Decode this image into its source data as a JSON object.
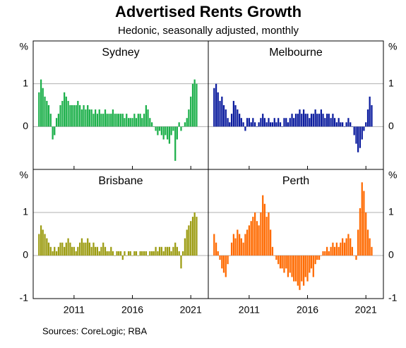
{
  "chart_data": {
    "type": "bar",
    "title": "Advertised Rents Growth",
    "subtitle": "Hedonic, seasonally adjusted, monthly",
    "y_unit": "%",
    "source": "Sources: CoreLogic; RBA",
    "xlim": [
      2007.5,
      2022.5
    ],
    "xticks": [
      2011,
      2016,
      2021
    ],
    "ylim": [
      -1,
      2
    ],
    "yticks": [
      -1,
      0,
      1
    ],
    "grid": true,
    "x": [
      2008,
      2008.17,
      2008.33,
      2008.5,
      2008.67,
      2008.83,
      2009,
      2009.17,
      2009.33,
      2009.5,
      2009.67,
      2009.83,
      2010,
      2010.17,
      2010.33,
      2010.5,
      2010.67,
      2010.83,
      2011,
      2011.17,
      2011.33,
      2011.5,
      2011.67,
      2011.83,
      2012,
      2012.17,
      2012.33,
      2012.5,
      2012.67,
      2012.83,
      2013,
      2013.17,
      2013.33,
      2013.5,
      2013.67,
      2013.83,
      2014,
      2014.17,
      2014.33,
      2014.5,
      2014.67,
      2014.83,
      2015,
      2015.17,
      2015.33,
      2015.5,
      2015.67,
      2015.83,
      2016,
      2016.17,
      2016.33,
      2016.5,
      2016.67,
      2016.83,
      2017,
      2017.17,
      2017.33,
      2017.5,
      2017.67,
      2017.83,
      2018,
      2018.17,
      2018.33,
      2018.5,
      2018.67,
      2018.83,
      2019,
      2019.17,
      2019.33,
      2019.5,
      2019.67,
      2019.83,
      2020,
      2020.17,
      2020.33,
      2020.5,
      2020.67,
      2020.83,
      2021,
      2021.17,
      2021.33,
      2021.5
    ],
    "series": [
      {
        "name": "Sydney",
        "color": "#1db04b",
        "values": [
          0.8,
          1.1,
          0.9,
          0.7,
          0.6,
          0.5,
          0.3,
          -0.3,
          -0.2,
          0.2,
          0.3,
          0.5,
          0.6,
          0.8,
          0.7,
          0.6,
          0.5,
          0.5,
          0.5,
          0.5,
          0.6,
          0.5,
          0.4,
          0.5,
          0.4,
          0.5,
          0.4,
          0.4,
          0.3,
          0.4,
          0.3,
          0.4,
          0.3,
          0.3,
          0.4,
          0.3,
          0.3,
          0.3,
          0.4,
          0.3,
          0.3,
          0.3,
          0.3,
          0.3,
          0.2,
          0.3,
          0.2,
          0.2,
          0.2,
          0.3,
          0.2,
          0.3,
          0.3,
          0.2,
          0.3,
          0.5,
          0.4,
          0.2,
          0.1,
          0.0,
          -0.1,
          -0.2,
          -0.1,
          -0.2,
          -0.3,
          -0.2,
          -0.3,
          -0.4,
          -0.2,
          -0.1,
          -0.8,
          -0.3,
          0.1,
          -0.1,
          0.0,
          0.1,
          0.2,
          0.4,
          0.7,
          1.0,
          1.1,
          1.0
        ]
      },
      {
        "name": "Melbourne",
        "color": "#0b1c9e",
        "values": [
          0.9,
          1.0,
          0.8,
          0.6,
          0.7,
          0.5,
          0.4,
          0.2,
          0.1,
          0.3,
          0.6,
          0.5,
          0.4,
          0.3,
          0.2,
          0.1,
          -0.1,
          0.2,
          0.2,
          0.1,
          0.2,
          0.1,
          0.0,
          0.1,
          0.2,
          0.3,
          0.2,
          0.1,
          0.2,
          0.1,
          0.1,
          0.2,
          0.1,
          0.2,
          0.1,
          0.0,
          0.2,
          0.2,
          0.1,
          0.2,
          0.3,
          0.2,
          0.3,
          0.3,
          0.4,
          0.3,
          0.4,
          0.3,
          0.3,
          0.2,
          0.3,
          0.3,
          0.4,
          0.3,
          0.3,
          0.4,
          0.3,
          0.2,
          0.3,
          0.3,
          0.2,
          0.3,
          0.2,
          0.1,
          0.2,
          0.1,
          0.1,
          0.0,
          0.1,
          0.2,
          0.1,
          0.0,
          -0.2,
          -0.4,
          -0.6,
          -0.5,
          -0.3,
          -0.1,
          0.1,
          0.4,
          0.7,
          0.5
        ]
      },
      {
        "name": "Brisbane",
        "color": "#9c9c12",
        "values": [
          0.5,
          0.7,
          0.6,
          0.5,
          0.4,
          0.3,
          0.2,
          0.1,
          0.2,
          0.1,
          0.2,
          0.3,
          0.3,
          0.2,
          0.3,
          0.4,
          0.3,
          0.2,
          0.2,
          0.1,
          0.2,
          0.3,
          0.4,
          0.3,
          0.3,
          0.4,
          0.3,
          0.2,
          0.3,
          0.2,
          0.2,
          0.1,
          0.2,
          0.3,
          0.2,
          0.1,
          0.1,
          0.2,
          0.1,
          0.0,
          0.1,
          0.1,
          0.1,
          -0.1,
          0.1,
          0.0,
          0.1,
          0.1,
          0.0,
          0.1,
          0.1,
          0.0,
          0.1,
          0.1,
          0.1,
          0.1,
          0.0,
          0.1,
          0.1,
          0.1,
          0.2,
          0.1,
          0.2,
          0.2,
          0.1,
          0.2,
          0.2,
          0.2,
          0.1,
          0.2,
          0.3,
          0.2,
          0.1,
          -0.3,
          0.1,
          0.4,
          0.6,
          0.7,
          0.8,
          0.9,
          1.0,
          0.9
        ]
      },
      {
        "name": "Perth",
        "color": "#ff6a00",
        "values": [
          0.5,
          0.3,
          0.1,
          -0.1,
          -0.3,
          -0.4,
          -0.5,
          -0.2,
          0.0,
          0.3,
          0.5,
          0.4,
          0.6,
          0.5,
          0.4,
          0.3,
          0.5,
          0.6,
          0.7,
          0.8,
          0.9,
          1.0,
          0.8,
          0.7,
          1.0,
          1.4,
          1.2,
          0.9,
          1.0,
          0.6,
          0.2,
          0.0,
          -0.1,
          -0.2,
          -0.3,
          -0.3,
          -0.4,
          -0.3,
          -0.5,
          -0.4,
          -0.5,
          -0.6,
          -0.6,
          -0.7,
          -0.8,
          -0.6,
          -0.7,
          -0.5,
          -0.6,
          -0.4,
          -0.3,
          -0.5,
          -0.2,
          -0.1,
          -0.1,
          0.0,
          0.1,
          0.1,
          0.2,
          0.1,
          0.2,
          0.3,
          0.2,
          0.3,
          0.2,
          0.3,
          0.4,
          0.3,
          0.4,
          0.5,
          0.4,
          0.2,
          0.0,
          -0.1,
          0.6,
          1.1,
          1.7,
          1.5,
          1.0,
          0.6,
          0.4,
          0.2
        ]
      }
    ]
  }
}
